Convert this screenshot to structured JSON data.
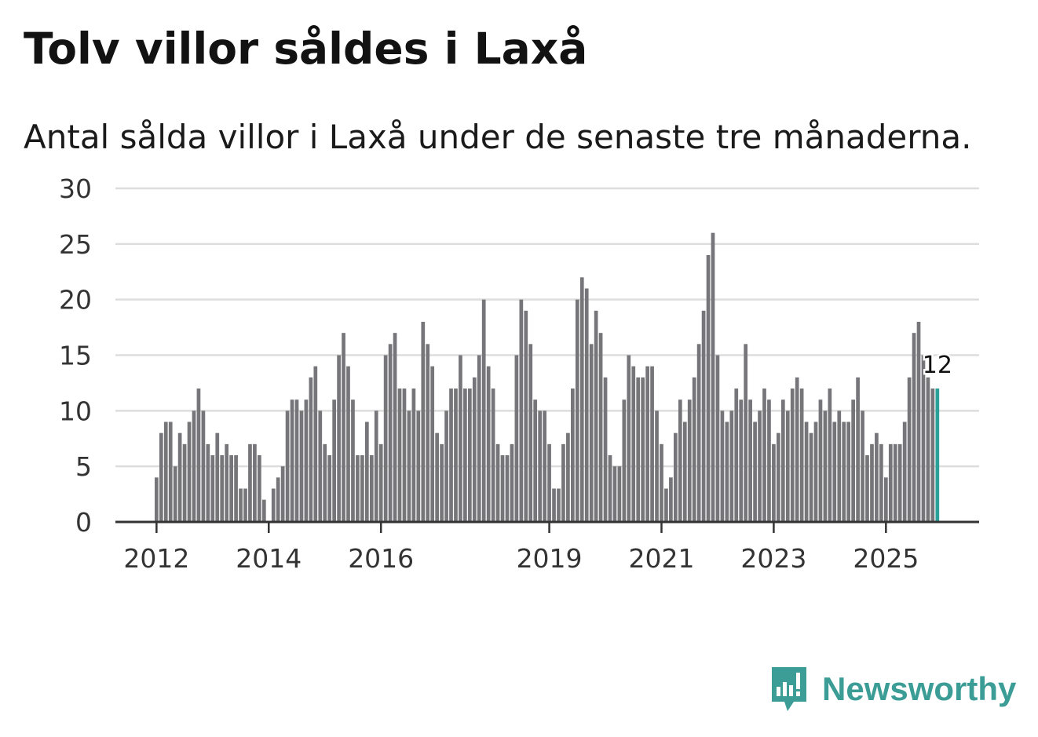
{
  "title": "Tolv villor såldes i Laxå",
  "subtitle": "Antal sålda villor i Laxå under de senaste tre månaderna.",
  "brand": {
    "name": "Newsworthy",
    "color": "#3c9c96",
    "icon": "newsworthy-logo-icon"
  },
  "chart_data": {
    "type": "bar",
    "y_ticks": [
      0,
      5,
      10,
      15,
      20,
      25,
      30
    ],
    "ylim": [
      0,
      30
    ],
    "x_ticks": [
      {
        "label": "2012",
        "index": 0
      },
      {
        "label": "2014",
        "index": 24
      },
      {
        "label": "2016",
        "index": 48
      },
      {
        "label": "2019",
        "index": 84
      },
      {
        "label": "2021",
        "index": 108
      },
      {
        "label": "2023",
        "index": 132
      },
      {
        "label": "2025",
        "index": 156
      }
    ],
    "values": [
      4,
      8,
      9,
      9,
      5,
      8,
      7,
      9,
      10,
      12,
      10,
      7,
      6,
      8,
      6,
      7,
      6,
      6,
      3,
      3,
      7,
      7,
      6,
      2,
      0,
      3,
      4,
      5,
      10,
      11,
      11,
      10,
      11,
      13,
      14,
      10,
      7,
      6,
      11,
      15,
      17,
      14,
      11,
      6,
      6,
      9,
      6,
      10,
      7,
      15,
      16,
      17,
      12,
      12,
      10,
      12,
      10,
      18,
      16,
      14,
      8,
      7,
      10,
      12,
      12,
      15,
      12,
      12,
      13,
      15,
      20,
      14,
      12,
      7,
      6,
      6,
      7,
      15,
      20,
      19,
      16,
      11,
      10,
      10,
      7,
      3,
      3,
      7,
      8,
      12,
      20,
      22,
      21,
      16,
      19,
      17,
      13,
      6,
      5,
      5,
      11,
      15,
      14,
      13,
      13,
      14,
      14,
      10,
      7,
      3,
      4,
      8,
      11,
      9,
      11,
      13,
      16,
      19,
      24,
      26,
      15,
      10,
      9,
      10,
      12,
      11,
      16,
      11,
      9,
      10,
      12,
      11,
      7,
      8,
      11,
      10,
      12,
      13,
      12,
      9,
      8,
      9,
      11,
      10,
      12,
      9,
      10,
      9,
      9,
      11,
      13,
      10,
      6,
      7,
      8,
      7,
      4,
      7,
      7,
      7,
      9,
      13,
      17,
      18,
      15,
      13,
      12,
      12
    ],
    "highlight": {
      "value": 12,
      "label": "12",
      "color": "#2aa198"
    },
    "bar_color": "#76767a"
  }
}
